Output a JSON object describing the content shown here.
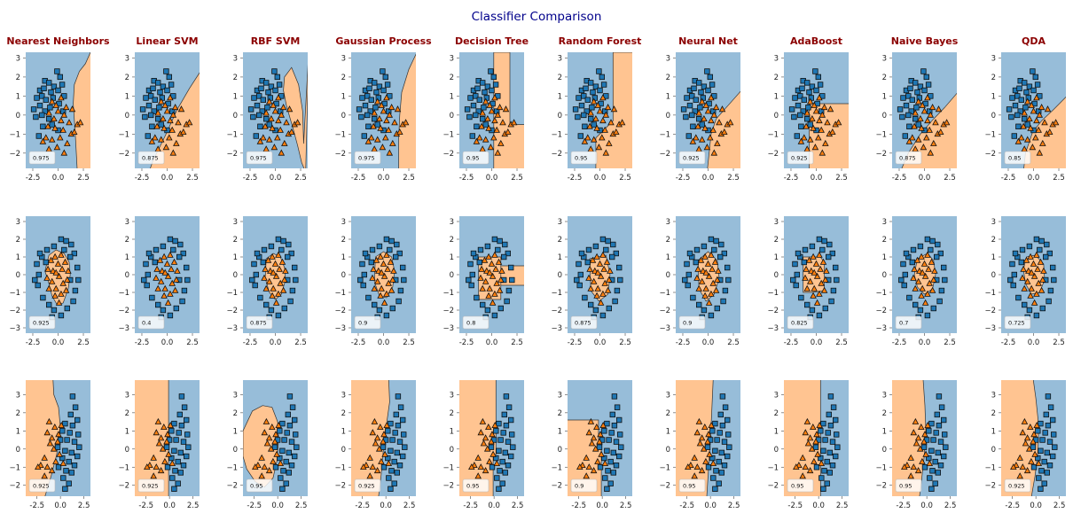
{
  "suptitle": "Classifier Comparison",
  "colors": {
    "class0": "#1f77b4",
    "class1": "#ff7f0e",
    "region0": "#97bdd9",
    "region1": "#ffc491",
    "suptitle": "#00008b",
    "column_title": "#8b0000"
  },
  "chart_data": {
    "type": "scatter",
    "layout": "3 rows x 10 columns of decision-boundary panels",
    "classifiers": [
      "Nearest Neighbors",
      "Linear SVM",
      "RBF SVM",
      "Gaussian Process",
      "Decision Tree",
      "Random Forest",
      "Neural Net",
      "AdaBoost",
      "Naive Bayes",
      "QDA"
    ],
    "markers": {
      "class0": "square",
      "class1": "triangle"
    },
    "datasets": [
      {
        "name": "",
        "xlim": [
          -3.2,
          3.2
        ],
        "ylim": [
          -2.8,
          3.3
        ],
        "xticks": [
          -2.5,
          0.0,
          2.5
        ],
        "yticks": [
          -2,
          -1,
          0,
          1,
          2,
          3
        ],
        "scores": [
          "0.975",
          "0.875",
          "0.975",
          "0.975",
          "0.95",
          "0.95",
          "0.925",
          "0.925",
          "0.875",
          "0.85"
        ],
        "class0_points": [
          [
            -0.1,
            2.3
          ],
          [
            0.2,
            2.0
          ],
          [
            -1.3,
            1.8
          ],
          [
            -0.9,
            1.7
          ],
          [
            -0.4,
            1.5
          ],
          [
            0.4,
            1.6
          ],
          [
            -1.8,
            1.3
          ],
          [
            -1.4,
            1.4
          ],
          [
            -0.7,
            1.2
          ],
          [
            0.0,
            1.3
          ],
          [
            -2.1,
            0.9
          ],
          [
            -1.6,
            1.0
          ],
          [
            -1.2,
            0.8
          ],
          [
            -0.5,
            0.9
          ],
          [
            0.6,
            1.0
          ],
          [
            -2.4,
            0.3
          ],
          [
            -1.8,
            0.5
          ],
          [
            -1.3,
            0.2
          ],
          [
            -0.8,
            0.4
          ],
          [
            0.1,
            0.6
          ],
          [
            -2.2,
            -0.1
          ],
          [
            -1.6,
            0.0
          ],
          [
            -0.9,
            -0.2
          ],
          [
            0.5,
            0.2
          ],
          [
            -1.5,
            -0.6
          ],
          [
            -0.6,
            -0.5
          ],
          [
            -1.9,
            -1.1
          ],
          [
            0.0,
            -0.8
          ]
        ],
        "class1_points": [
          [
            -0.6,
            0.7
          ],
          [
            0.3,
            0.9
          ],
          [
            -0.2,
            0.5
          ],
          [
            0.8,
            0.4
          ],
          [
            -0.9,
            0.1
          ],
          [
            0.0,
            0.2
          ],
          [
            0.6,
            0.0
          ],
          [
            1.4,
            0.3
          ],
          [
            -0.4,
            -0.2
          ],
          [
            0.3,
            -0.3
          ],
          [
            1.1,
            -0.4
          ],
          [
            1.9,
            -0.5
          ],
          [
            -1.0,
            -0.6
          ],
          [
            -0.3,
            -0.7
          ],
          [
            0.5,
            -0.8
          ],
          [
            1.3,
            -1.0
          ],
          [
            -1.2,
            -1.2
          ],
          [
            -0.6,
            -1.3
          ],
          [
            0.2,
            -1.2
          ],
          [
            0.9,
            -1.5
          ],
          [
            -0.9,
            -1.8
          ],
          [
            -0.1,
            -1.7
          ],
          [
            0.6,
            -2.0
          ],
          [
            1.6,
            -0.9
          ],
          [
            -1.5,
            -1.4
          ],
          [
            2.2,
            -0.4
          ]
        ]
      },
      {
        "name": "",
        "xlim": [
          -3.2,
          3.2
        ],
        "ylim": [
          -3.3,
          3.3
        ],
        "xticks": [
          -2.5,
          0.0,
          2.5
        ],
        "yticks": [
          -3,
          -2,
          -1,
          0,
          1,
          2,
          3
        ],
        "scores": [
          "0.925",
          "0.4",
          "0.875",
          "0.9",
          "0.8",
          "0.875",
          "0.9",
          "0.825",
          "0.7",
          "0.725"
        ],
        "class0_points": [
          [
            0.3,
            2.0
          ],
          [
            0.8,
            1.9
          ],
          [
            -0.4,
            1.6
          ],
          [
            1.3,
            1.7
          ],
          [
            -1.1,
            1.4
          ],
          [
            1.6,
            1.2
          ],
          [
            -1.6,
            1.0
          ],
          [
            0.6,
            1.4
          ],
          [
            -2.1,
            0.6
          ],
          [
            1.9,
            0.4
          ],
          [
            -1.9,
            0.0
          ],
          [
            2.0,
            -0.3
          ],
          [
            -2.0,
            -0.6
          ],
          [
            1.7,
            -0.9
          ],
          [
            -1.5,
            -1.3
          ],
          [
            1.5,
            -1.5
          ],
          [
            -0.9,
            -1.7
          ],
          [
            0.9,
            -1.9
          ],
          [
            -0.4,
            -2.0
          ],
          [
            0.3,
            -2.3
          ],
          [
            -0.6,
            -2.4
          ],
          [
            -1.8,
            1.2
          ],
          [
            1.2,
            1.0
          ],
          [
            -2.3,
            -0.3
          ],
          [
            1.2,
            -0.3
          ],
          [
            -1.2,
            0.7
          ]
        ],
        "class1_points": [
          [
            -0.3,
            1.0
          ],
          [
            0.3,
            1.1
          ],
          [
            -0.7,
            0.8
          ],
          [
            0.7,
            0.7
          ],
          [
            -1.0,
            0.3
          ],
          [
            0.0,
            0.6
          ],
          [
            1.0,
            0.2
          ],
          [
            -0.5,
            0.2
          ],
          [
            0.4,
            0.3
          ],
          [
            -1.1,
            -0.2
          ],
          [
            0.1,
            -0.1
          ],
          [
            0.9,
            -0.3
          ],
          [
            -0.6,
            -0.4
          ],
          [
            0.5,
            -0.5
          ],
          [
            -0.9,
            -0.8
          ],
          [
            -0.2,
            -0.8
          ],
          [
            0.8,
            -0.9
          ],
          [
            -0.3,
            -1.2
          ],
          [
            0.3,
            -1.1
          ],
          [
            0.1,
            -1.6
          ],
          [
            -0.2,
            0.1
          ]
        ]
      },
      {
        "name": "",
        "xlim": [
          -3.7,
          3.2
        ],
        "ylim": [
          -2.6,
          3.8
        ],
        "xticks": [
          -2.5,
          0.0,
          2.5
        ],
        "yticks": [
          -2,
          -1,
          0,
          1,
          2,
          3
        ],
        "scores": [
          "0.925",
          "0.925",
          "0.95",
          "0.925",
          "0.95",
          "0.9",
          "0.95",
          "0.95",
          "0.95",
          "0.925"
        ],
        "class0_points": [
          [
            1.3,
            2.9
          ],
          [
            1.6,
            2.3
          ],
          [
            1.1,
            1.9
          ],
          [
            1.8,
            1.6
          ],
          [
            0.5,
            1.4
          ],
          [
            1.3,
            1.3
          ],
          [
            0.2,
            1.0
          ],
          [
            1.0,
            0.9
          ],
          [
            1.9,
            0.8
          ],
          [
            0.0,
            0.5
          ],
          [
            0.7,
            0.5
          ],
          [
            1.5,
            0.4
          ],
          [
            2.0,
            0.1
          ],
          [
            -0.3,
            0.1
          ],
          [
            0.5,
            -0.1
          ],
          [
            1.2,
            -0.2
          ],
          [
            1.8,
            -0.4
          ],
          [
            0.2,
            -0.5
          ],
          [
            0.9,
            -0.7
          ],
          [
            1.5,
            -0.9
          ],
          [
            -0.2,
            -1.0
          ],
          [
            0.6,
            -1.2
          ],
          [
            1.2,
            -1.3
          ],
          [
            0.3,
            -1.6
          ],
          [
            0.9,
            -1.9
          ],
          [
            0.5,
            -2.2
          ]
        ],
        "class1_points": [
          [
            -2.1,
            -0.9
          ],
          [
            -1.7,
            -0.5
          ],
          [
            -1.4,
            -1.0
          ],
          [
            -1.2,
            1.5
          ],
          [
            -0.9,
            0.6
          ],
          [
            -0.7,
            0.0
          ],
          [
            -0.5,
            -0.7
          ],
          [
            -0.9,
            -1.2
          ],
          [
            -0.3,
            0.4
          ],
          [
            -0.1,
            -0.3
          ],
          [
            0.1,
            1.3
          ],
          [
            -1.4,
            0.9
          ],
          [
            -0.6,
            1.2
          ],
          [
            -0.2,
            0.8
          ],
          [
            0.3,
            -0.8
          ],
          [
            -1.7,
            -1.5
          ],
          [
            -2.4,
            -1.0
          ],
          [
            -1.1,
            0.3
          ]
        ]
      }
    ]
  }
}
